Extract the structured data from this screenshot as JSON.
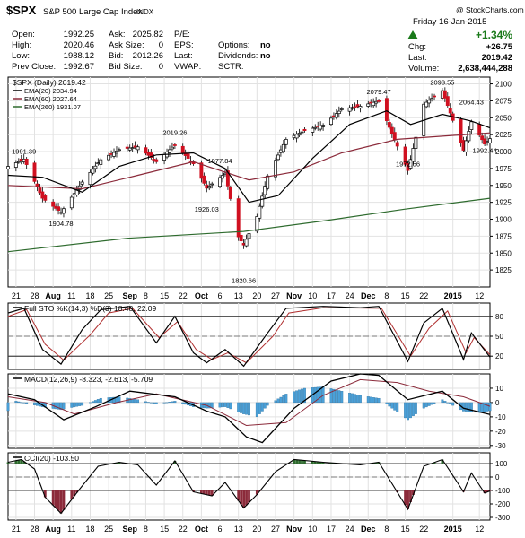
{
  "header": {
    "symbol": "$SPX",
    "name": "S&P 500 Large Cap Index",
    "exchange": "INDX",
    "copyright": "@ StockCharts.com",
    "date": "Friday 16-Jan-2015",
    "quote_left": [
      {
        "label": "Open:",
        "value": "1992.25"
      },
      {
        "label": "High:",
        "value": "2020.46"
      },
      {
        "label": "Low:",
        "value": "1988.12"
      },
      {
        "label": "Prev Close:",
        "value": "1992.67"
      }
    ],
    "quote_mid": [
      {
        "label": "Ask:",
        "value": "2025.82"
      },
      {
        "label": "Ask Size:",
        "value": "0"
      },
      {
        "label": "Bid:",
        "value": "2012.26"
      },
      {
        "label": "Bid Size:",
        "value": "0"
      }
    ],
    "quote_right_labels": [
      "P/E:",
      "EPS:",
      "Last:",
      "VWAP:"
    ],
    "quote_extra": [
      {
        "label": "Options:",
        "value": "no"
      },
      {
        "label": "Dividends:",
        "value": "no"
      },
      {
        "label": "SCTR:",
        "value": ""
      }
    ],
    "quote_far": [
      {
        "label": "",
        "value": "+1.34%"
      },
      {
        "label": "Chg:",
        "value": "+26.75"
      },
      {
        "label": "Last:",
        "value": "2019.42"
      },
      {
        "label": "Volume:",
        "value": "2,638,444,288"
      }
    ],
    "change_color": "#1a7a1a"
  },
  "chart_data": [
    {
      "type": "candlestick",
      "title": "$SPX (Daily) 2019.42",
      "legend": [
        {
          "name": "EMA(20) 2034.94",
          "color": "#000000"
        },
        {
          "name": "EMA(60) 2027.64",
          "color": "#8b2a3a"
        },
        {
          "name": "EMA(260) 1931.07",
          "color": "#2e6b2e"
        }
      ],
      "ylim": [
        1800,
        2110
      ],
      "yticks": [
        1825,
        1850,
        1875,
        1900,
        1925,
        1950,
        1975,
        2000,
        2025,
        2050,
        2075,
        2100
      ],
      "x_start": "2014-07-18",
      "x_end": "2015-01-16",
      "xtick_labels": [
        "21",
        "28",
        "Aug",
        "11",
        "18",
        "25",
        "Sep",
        "8",
        "15",
        "22",
        "Oct",
        "6",
        "13",
        "20",
        "27",
        "Nov",
        "10",
        "17",
        "24",
        "Dec",
        "8",
        "15",
        "22",
        "2015",
        "12"
      ],
      "xtick_dates": [
        "2014-07-21",
        "2014-07-28",
        "2014-08-04",
        "2014-08-11",
        "2014-08-18",
        "2014-08-25",
        "2014-09-02",
        "2014-09-08",
        "2014-09-15",
        "2014-09-22",
        "2014-09-29",
        "2014-10-06",
        "2014-10-13",
        "2014-10-20",
        "2014-10-27",
        "2014-11-03",
        "2014-11-10",
        "2014-11-17",
        "2014-11-24",
        "2014-12-01",
        "2014-12-08",
        "2014-12-15",
        "2014-12-22",
        "2015-01-02",
        "2015-01-12"
      ],
      "annotations": [
        {
          "date": "2014-07-24",
          "value": 1991.39,
          "label": "1991.39"
        },
        {
          "date": "2014-08-07",
          "value": 1904.78,
          "label": "1904.78"
        },
        {
          "date": "2014-09-19",
          "value": 2019.26,
          "label": "2019.26"
        },
        {
          "date": "2014-10-01",
          "value": 1926.03,
          "label": "1926.03"
        },
        {
          "date": "2014-10-06",
          "value": 1977.84,
          "label": "1977.84"
        },
        {
          "date": "2014-10-15",
          "value": 1820.66,
          "label": "1820.66"
        },
        {
          "date": "2014-12-05",
          "value": 2079.47,
          "label": "2079.47"
        },
        {
          "date": "2014-12-16",
          "value": 1972.56,
          "label": "1972.56"
        },
        {
          "date": "2014-12-29",
          "value": 2093.55,
          "label": "2093.55"
        },
        {
          "date": "2015-01-09",
          "value": 2064.43,
          "label": "2064.43"
        },
        {
          "date": "2015-01-14",
          "value": 1992.44,
          "label": "1992.44"
        }
      ],
      "close_path": [
        [
          "2014-07-18",
          1978
        ],
        [
          "2014-07-24",
          1989
        ],
        [
          "2014-07-31",
          1931
        ],
        [
          "2014-08-07",
          1910
        ],
        [
          "2014-08-15",
          1955
        ],
        [
          "2014-08-22",
          1988
        ],
        [
          "2014-08-29",
          2003
        ],
        [
          "2014-09-05",
          2007
        ],
        [
          "2014-09-12",
          1985
        ],
        [
          "2014-09-19",
          2010
        ],
        [
          "2014-09-26",
          1982
        ],
        [
          "2014-10-01",
          1946
        ],
        [
          "2014-10-08",
          1968
        ],
        [
          "2014-10-13",
          1874
        ],
        [
          "2014-10-15",
          1862
        ],
        [
          "2014-10-20",
          1904
        ],
        [
          "2014-10-24",
          1964
        ],
        [
          "2014-10-31",
          2018
        ],
        [
          "2014-11-07",
          2031
        ],
        [
          "2014-11-14",
          2039
        ],
        [
          "2014-11-21",
          2063
        ],
        [
          "2014-11-28",
          2067
        ],
        [
          "2014-12-05",
          2075
        ],
        [
          "2014-12-10",
          2026
        ],
        [
          "2014-12-16",
          1972
        ],
        [
          "2014-12-22",
          2070
        ],
        [
          "2014-12-29",
          2090
        ],
        [
          "2015-01-06",
          2002
        ],
        [
          "2015-01-09",
          2044
        ],
        [
          "2015-01-14",
          2011
        ],
        [
          "2015-01-16",
          2019
        ]
      ],
      "ema20": [
        [
          "2014-07-18",
          1965
        ],
        [
          "2014-07-31",
          1962
        ],
        [
          "2014-08-15",
          1940
        ],
        [
          "2014-08-29",
          1978
        ],
        [
          "2014-09-12",
          1995
        ],
        [
          "2014-09-26",
          1998
        ],
        [
          "2014-10-08",
          1975
        ],
        [
          "2014-10-17",
          1925
        ],
        [
          "2014-10-28",
          1935
        ],
        [
          "2014-11-10",
          1990
        ],
        [
          "2014-11-24",
          2040
        ],
        [
          "2014-12-08",
          2060
        ],
        [
          "2014-12-17",
          2040
        ],
        [
          "2014-12-29",
          2055
        ],
        [
          "2015-01-09",
          2045
        ],
        [
          "2015-01-16",
          2035
        ]
      ],
      "ema60": [
        [
          "2014-07-18",
          1950
        ],
        [
          "2014-08-15",
          1945
        ],
        [
          "2014-09-05",
          1965
        ],
        [
          "2014-09-26",
          1985
        ],
        [
          "2014-10-17",
          1958
        ],
        [
          "2014-11-03",
          1970
        ],
        [
          "2014-11-21",
          1998
        ],
        [
          "2014-12-12",
          2018
        ],
        [
          "2015-01-16",
          2027.64
        ]
      ],
      "ema260": [
        [
          "2014-07-18",
          1852
        ],
        [
          "2014-09-01",
          1872
        ],
        [
          "2014-10-15",
          1882
        ],
        [
          "2014-11-15",
          1898
        ],
        [
          "2014-12-15",
          1915
        ],
        [
          "2015-01-16",
          1931.07
        ]
      ]
    },
    {
      "type": "line",
      "title": "Full STO %K(14,3) %D(3) 18.48, 22.09",
      "ylim": [
        0,
        100
      ],
      "yticks": [
        20,
        50,
        80
      ],
      "reference_lines": [
        20,
        80
      ],
      "series": [
        {
          "name": "%K(14,3)",
          "color": "#000000",
          "points": [
            [
              "2014-07-18",
              85
            ],
            [
              "2014-07-24",
              92
            ],
            [
              "2014-07-31",
              30
            ],
            [
              "2014-08-07",
              8
            ],
            [
              "2014-08-15",
              60
            ],
            [
              "2014-08-22",
              90
            ],
            [
              "2014-09-02",
              95
            ],
            [
              "2014-09-12",
              40
            ],
            [
              "2014-09-19",
              80
            ],
            [
              "2014-09-26",
              25
            ],
            [
              "2014-10-01",
              10
            ],
            [
              "2014-10-08",
              30
            ],
            [
              "2014-10-15",
              5
            ],
            [
              "2014-10-24",
              55
            ],
            [
              "2014-10-31",
              92
            ],
            [
              "2014-11-14",
              95
            ],
            [
              "2014-11-28",
              93
            ],
            [
              "2014-12-05",
              95
            ],
            [
              "2014-12-16",
              12
            ],
            [
              "2014-12-22",
              70
            ],
            [
              "2014-12-29",
              92
            ],
            [
              "2015-01-06",
              15
            ],
            [
              "2015-01-09",
              55
            ],
            [
              "2015-01-16",
              18.48
            ]
          ]
        },
        {
          "name": "%D(3)",
          "color": "#b03030",
          "points": [
            [
              "2014-07-18",
              80
            ],
            [
              "2014-07-25",
              90
            ],
            [
              "2014-08-01",
              38
            ],
            [
              "2014-08-08",
              14
            ],
            [
              "2014-08-18",
              52
            ],
            [
              "2014-08-25",
              85
            ],
            [
              "2014-09-03",
              92
            ],
            [
              "2014-09-13",
              48
            ],
            [
              "2014-09-20",
              72
            ],
            [
              "2014-09-27",
              30
            ],
            [
              "2014-10-03",
              15
            ],
            [
              "2014-10-09",
              25
            ],
            [
              "2014-10-16",
              10
            ],
            [
              "2014-10-26",
              50
            ],
            [
              "2014-11-01",
              85
            ],
            [
              "2014-11-14",
              93
            ],
            [
              "2014-12-06",
              92
            ],
            [
              "2014-12-17",
              20
            ],
            [
              "2014-12-24",
              62
            ],
            [
              "2014-12-31",
              88
            ],
            [
              "2015-01-07",
              25
            ],
            [
              "2015-01-10",
              48
            ],
            [
              "2015-01-16",
              22.09
            ]
          ]
        }
      ]
    },
    {
      "type": "line",
      "title": "MACD(12,26,9) -8.323, -2.613, -5.709",
      "ylim": [
        -32,
        20
      ],
      "yticks": [
        -30,
        -20,
        -10,
        0,
        10
      ],
      "series": [
        {
          "name": "MACD(12,26,9)",
          "color": "#000000",
          "points": [
            [
              "2014-07-18",
              6
            ],
            [
              "2014-07-28",
              2
            ],
            [
              "2014-08-08",
              -12
            ],
            [
              "2014-08-20",
              -3
            ],
            [
              "2014-09-02",
              8
            ],
            [
              "2014-09-19",
              4
            ],
            [
              "2014-10-01",
              -6
            ],
            [
              "2014-10-08",
              -10
            ],
            [
              "2014-10-16",
              -24
            ],
            [
              "2014-10-22",
              -28
            ],
            [
              "2014-11-03",
              -4
            ],
            [
              "2014-11-17",
              15
            ],
            [
              "2014-11-28",
              20
            ],
            [
              "2014-12-05",
              19
            ],
            [
              "2014-12-16",
              2
            ],
            [
              "2014-12-29",
              8
            ],
            [
              "2015-01-06",
              -4
            ],
            [
              "2015-01-16",
              -8.323
            ]
          ]
        },
        {
          "name": "Signal",
          "color": "#8b2a3a",
          "points": [
            [
              "2014-07-18",
              4
            ],
            [
              "2014-08-01",
              0
            ],
            [
              "2014-08-12",
              -8
            ],
            [
              "2014-08-28",
              0
            ],
            [
              "2014-09-12",
              6
            ],
            [
              "2014-10-01",
              -2
            ],
            [
              "2014-10-16",
              -16
            ],
            [
              "2014-10-31",
              -14
            ],
            [
              "2014-11-14",
              5
            ],
            [
              "2014-11-28",
              16
            ],
            [
              "2014-12-12",
              14
            ],
            [
              "2014-12-24",
              8
            ],
            [
              "2015-01-06",
              4
            ],
            [
              "2015-01-16",
              -2.613
            ]
          ]
        },
        {
          "name": "Histogram",
          "color": "#4aa0d8",
          "points": [
            [
              "2014-07-21",
              1
            ],
            [
              "2014-07-31",
              -3
            ],
            [
              "2014-08-07",
              -5
            ],
            [
              "2014-08-15",
              -2
            ],
            [
              "2014-08-22",
              3
            ],
            [
              "2014-08-29",
              4
            ],
            [
              "2014-09-05",
              2
            ],
            [
              "2014-09-12",
              -1
            ],
            [
              "2014-09-19",
              1
            ],
            [
              "2014-09-26",
              -3
            ],
            [
              "2014-10-01",
              -4
            ],
            [
              "2014-10-08",
              -3
            ],
            [
              "2014-10-15",
              -8
            ],
            [
              "2014-10-20",
              -10
            ],
            [
              "2014-10-24",
              -2
            ],
            [
              "2014-10-31",
              6
            ],
            [
              "2014-11-07",
              10
            ],
            [
              "2014-11-14",
              11
            ],
            [
              "2014-11-21",
              8
            ],
            [
              "2014-11-28",
              5
            ],
            [
              "2014-12-05",
              3
            ],
            [
              "2014-12-10",
              -4
            ],
            [
              "2014-12-16",
              -12
            ],
            [
              "2014-12-22",
              -4
            ],
            [
              "2014-12-29",
              2
            ],
            [
              "2015-01-06",
              -6
            ],
            [
              "2015-01-12",
              -7
            ],
            [
              "2015-01-16",
              -5.709
            ]
          ]
        }
      ]
    },
    {
      "type": "line",
      "title": "CCI(20) -103.50",
      "ylim": [
        -320,
        180
      ],
      "yticks": [
        -300,
        -200,
        -100,
        0,
        100
      ],
      "reference_lines": [
        -100,
        100
      ],
      "series": [
        {
          "name": "CCI(20)",
          "color": "#000000",
          "points": [
            [
              "2014-07-18",
              110
            ],
            [
              "2014-07-23",
              130
            ],
            [
              "2014-07-28",
              60
            ],
            [
              "2014-08-01",
              -150
            ],
            [
              "2014-08-07",
              -270
            ],
            [
              "2014-08-14",
              -90
            ],
            [
              "2014-08-21",
              80
            ],
            [
              "2014-08-29",
              110
            ],
            [
              "2014-09-05",
              90
            ],
            [
              "2014-09-12",
              -60
            ],
            [
              "2014-09-19",
              120
            ],
            [
              "2014-09-26",
              -110
            ],
            [
              "2014-10-03",
              -140
            ],
            [
              "2014-10-08",
              -40
            ],
            [
              "2014-10-15",
              -230
            ],
            [
              "2014-10-20",
              -130
            ],
            [
              "2014-10-27",
              40
            ],
            [
              "2014-11-03",
              130
            ],
            [
              "2014-11-14",
              110
            ],
            [
              "2014-11-28",
              90
            ],
            [
              "2014-12-05",
              110
            ],
            [
              "2014-12-16",
              -240
            ],
            [
              "2014-12-22",
              80
            ],
            [
              "2014-12-29",
              130
            ],
            [
              "2015-01-06",
              -110
            ],
            [
              "2015-01-09",
              30
            ],
            [
              "2015-01-14",
              -120
            ],
            [
              "2015-01-16",
              -103.5
            ]
          ]
        }
      ],
      "fill_above": "#2e6b2e",
      "fill_below": "#8b2a3a"
    }
  ]
}
